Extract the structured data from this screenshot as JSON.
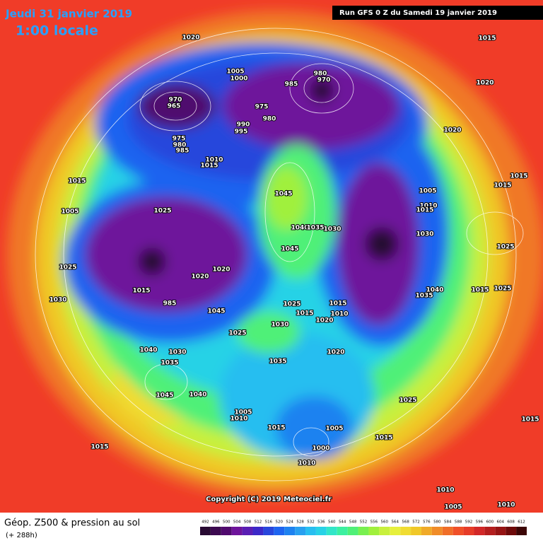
{
  "header": {
    "date": "Jeudi 31 janvier 2019",
    "time": "1:00 locale",
    "run": "Run GFS 0 Z du Samedi 19 janvier 2019"
  },
  "footer": {
    "title": "Géop. Z500 & pression au sol",
    "lead": "(+ 288h)",
    "copyright": "Copyright (C) 2019 Meteociel.fr"
  },
  "isobars": {
    "labels": [
      1020,
      1005,
      1000,
      985,
      980,
      970,
      970,
      965,
      975,
      980,
      990,
      995,
      975,
      980,
      985,
      1010,
      1015,
      1015,
      1020,
      1020,
      1015,
      1015,
      1005,
      1010,
      1015,
      1030,
      1045,
      1040,
      1035,
      1030,
      1045,
      1025,
      1020,
      1020,
      1015,
      1005,
      1025,
      1030,
      1015,
      985,
      1025,
      1015,
      1015,
      1010,
      1020,
      1020,
      1030,
      1025,
      1035,
      1040,
      1030,
      1035,
      1045,
      1040,
      1005,
      1010,
      1015,
      1005,
      1000,
      1010,
      1015,
      1025,
      1040,
      1035,
      1015,
      1025,
      1025,
      1015,
      1015,
      1010,
      1005,
      1010,
      1045
    ]
  },
  "colorbar": {
    "ticks": [
      492,
      496,
      500,
      504,
      508,
      512,
      516,
      520,
      524,
      528,
      532,
      536,
      540,
      544,
      548,
      552,
      556,
      560,
      564,
      568,
      572,
      576,
      580,
      584,
      588,
      592,
      596,
      600,
      604,
      608,
      612
    ],
    "colors": [
      "#280a32",
      "#3c0a50",
      "#500a6e",
      "#6e149b",
      "#5a1eb4",
      "#3c28c8",
      "#2846dc",
      "#1e64f0",
      "#1e82f0",
      "#28a0f0",
      "#28bef0",
      "#28d2e6",
      "#32e6c8",
      "#3cf0a0",
      "#50f078",
      "#78f050",
      "#a0f03c",
      "#c8f03c",
      "#e6f03c",
      "#f0dc32",
      "#f0c828",
      "#f0aa28",
      "#f08c28",
      "#f06e28",
      "#f05028",
      "#e63c28",
      "#d22828",
      "#b41e1e",
      "#961414",
      "#6e0a0a",
      "#3c0505"
    ]
  }
}
